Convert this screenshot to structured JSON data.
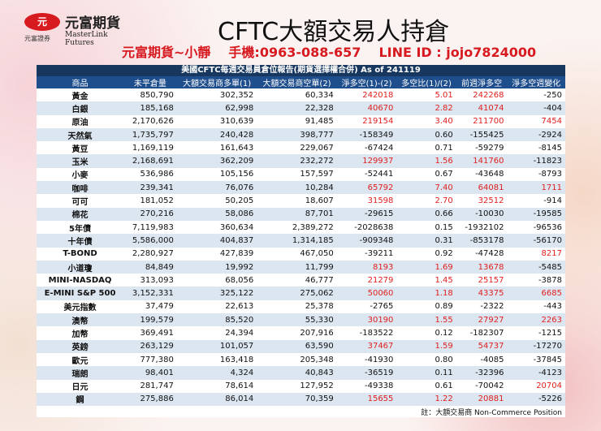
{
  "header": {
    "logo_mark": "元",
    "logo_cn": "元富期貨",
    "logo_en": "MasterLink Futures",
    "logo_sub": "元富證券",
    "title": "CFTC大額交易人持倉",
    "contact": [
      "元富期貨~小靜",
      "手機:0963-088-657",
      "LINE ID : jojo7824000"
    ]
  },
  "table": {
    "caption": "美國CFTC每週交易員倉位報告(期貨選擇權合併) As of  241119",
    "columns": [
      "商品",
      "未平倉量",
      "大額交易商多單(1)",
      "大額交易商空單(2)",
      "淨多空(1)-(2)",
      "多空比(1)/(2)",
      "前週淨多空",
      "淨多空週變化"
    ],
    "rows": [
      [
        "黃金",
        "850,790",
        "302,352",
        "60,334",
        "242018",
        "5.01",
        "242268",
        "-250"
      ],
      [
        "白銀",
        "185,168",
        "62,998",
        "22,328",
        "40670",
        "2.82",
        "41074",
        "-404"
      ],
      [
        "原油",
        "2,170,626",
        "310,639",
        "91,485",
        "219154",
        "3.40",
        "211700",
        "7454"
      ],
      [
        "天然氣",
        "1,735,797",
        "240,428",
        "398,777",
        "-158349",
        "0.60",
        "-155425",
        "-2924"
      ],
      [
        "黃豆",
        "1,169,119",
        "161,643",
        "229,067",
        "-67424",
        "0.71",
        "-59279",
        "-8145"
      ],
      [
        "玉米",
        "2,168,691",
        "362,209",
        "232,272",
        "129937",
        "1.56",
        "141760",
        "-11823"
      ],
      [
        "小麥",
        "536,986",
        "105,156",
        "157,597",
        "-52441",
        "0.67",
        "-43648",
        "-8793"
      ],
      [
        "咖啡",
        "239,341",
        "76,076",
        "10,284",
        "65792",
        "7.40",
        "64081",
        "1711"
      ],
      [
        "可可",
        "181,052",
        "50,205",
        "18,607",
        "31598",
        "2.70",
        "32512",
        "-914"
      ],
      [
        "棉花",
        "270,216",
        "58,086",
        "87,701",
        "-29615",
        "0.66",
        "-10030",
        "-19585"
      ],
      [
        "5年債",
        "7,119,983",
        "360,634",
        "2,389,272",
        "-2028638",
        "0.15",
        "-1932102",
        "-96536"
      ],
      [
        "十年債",
        "5,586,000",
        "404,837",
        "1,314,185",
        "-909348",
        "0.31",
        "-853178",
        "-56170"
      ],
      [
        "T-BOND",
        "2,280,927",
        "427,839",
        "467,050",
        "-39211",
        "0.92",
        "-47428",
        "8217"
      ],
      [
        "小道瓊",
        "84,849",
        "19,992",
        "11,799",
        "8193",
        "1.69",
        "13678",
        "-5485"
      ],
      [
        "MINI-NASDAQ",
        "313,093",
        "68,056",
        "46,777",
        "21279",
        "1.45",
        "25157",
        "-3878"
      ],
      [
        "E-MINI S&P 500",
        "3,152,331",
        "325,122",
        "275,062",
        "50060",
        "1.18",
        "43375",
        "6685"
      ],
      [
        "美元指數",
        "37,479",
        "22,613",
        "25,378",
        "-2765",
        "0.89",
        "-2322",
        "-443"
      ],
      [
        "澳幣",
        "199,579",
        "85,520",
        "55,330",
        "30190",
        "1.55",
        "27927",
        "2263"
      ],
      [
        "加幣",
        "369,491",
        "24,394",
        "207,916",
        "-183522",
        "0.12",
        "-182307",
        "-1215"
      ],
      [
        "英鎊",
        "263,129",
        "101,057",
        "63,590",
        "37467",
        "1.59",
        "54737",
        "-17270"
      ],
      [
        "歐元",
        "777,380",
        "163,418",
        "205,348",
        "-41930",
        "0.80",
        "-4085",
        "-37845"
      ],
      [
        "瑞朗",
        "98,401",
        "4,324",
        "40,843",
        "-36519",
        "0.11",
        "-32396",
        "-4123"
      ],
      [
        "日元",
        "281,747",
        "78,614",
        "127,952",
        "-49338",
        "0.61",
        "-70042",
        "20704"
      ],
      [
        "鋼",
        "275,886",
        "86,014",
        "70,359",
        "15655",
        "1.22",
        "20881",
        "-5226"
      ]
    ],
    "footnote": "註：大額交易商 Non-Commerce Position"
  }
}
